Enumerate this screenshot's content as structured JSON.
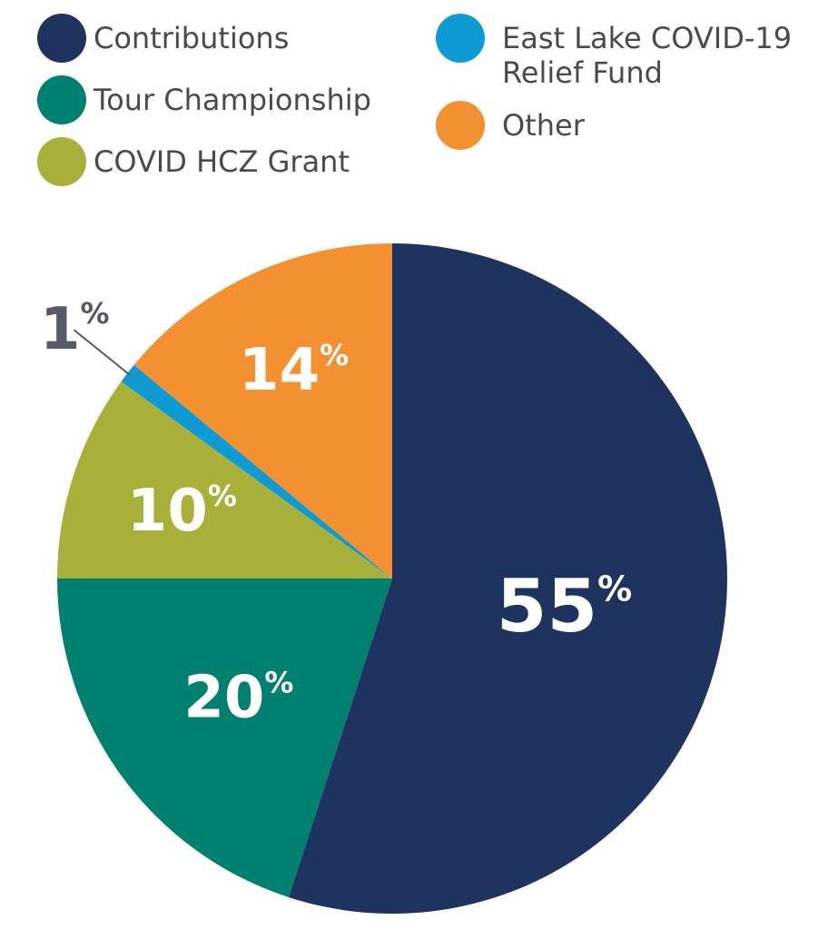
{
  "chart_data": {
    "type": "pie",
    "title": "",
    "legend_position": "top",
    "start_angle_deg": 0,
    "direction": "clockwise",
    "slices": [
      {
        "label": "Contributions",
        "value": 55,
        "display": "55",
        "unit": "%",
        "color": "#1e335e"
      },
      {
        "label": "Tour Championship",
        "value": 20,
        "display": "20",
        "unit": "%",
        "color": "#00806e"
      },
      {
        "label": "COVID HCZ Grant",
        "value": 10,
        "display": "10",
        "unit": "%",
        "color": "#a9b03a"
      },
      {
        "label": "East Lake COVID-19 Relief Fund",
        "value": 1,
        "display": "1",
        "unit": "%",
        "color": "#0e9ad3"
      },
      {
        "label": "Other",
        "value": 14,
        "display": "14",
        "unit": "%",
        "color": "#f39130"
      }
    ]
  },
  "legend": {
    "items": [
      {
        "lines": [
          "Contributions"
        ],
        "color": "#1e335e"
      },
      {
        "lines": [
          "Tour Championship"
        ],
        "color": "#00806e"
      },
      {
        "lines": [
          "COVID HCZ Grant"
        ],
        "color": "#a9b03a"
      },
      {
        "lines": [
          "East Lake COVID-19",
          "Relief Fund"
        ],
        "color": "#0e9ad3"
      },
      {
        "lines": [
          "Other"
        ],
        "color": "#f39130"
      }
    ]
  },
  "colors": {
    "callout_text": "#555a66",
    "callout_line": "#555a66",
    "label_text": "#ffffff",
    "legend_text": "#4a4a4a"
  }
}
